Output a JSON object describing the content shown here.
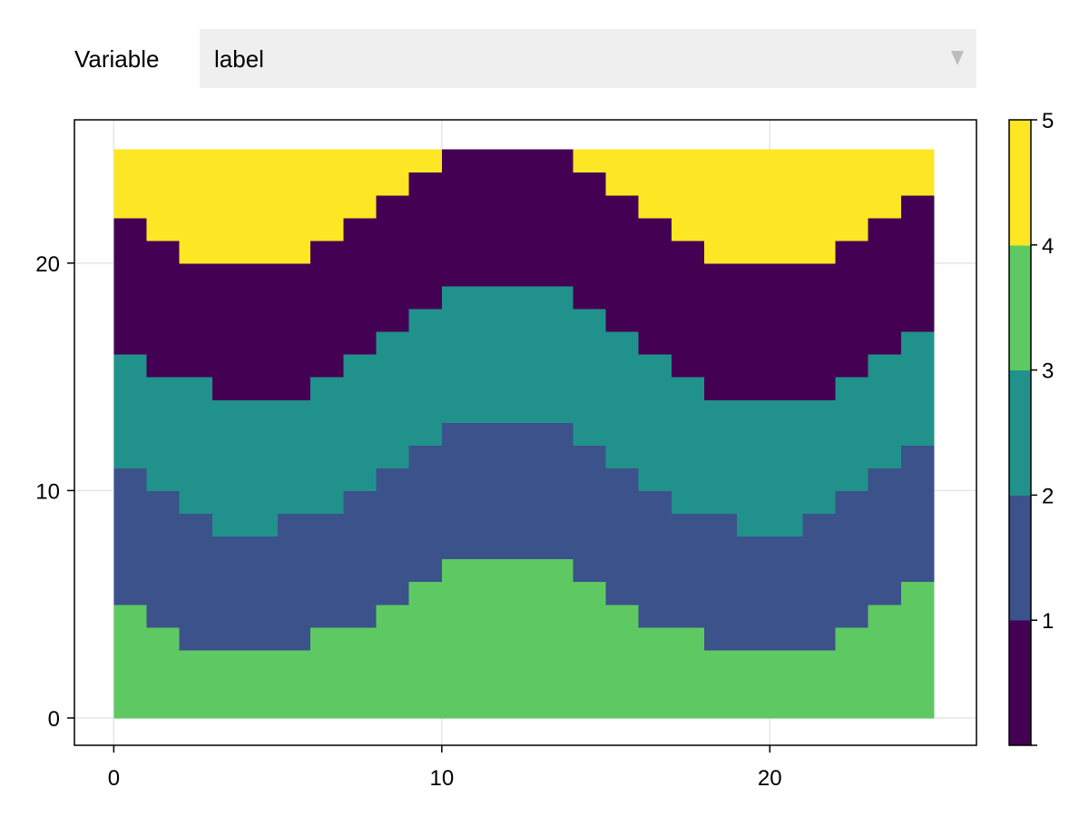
{
  "controls": {
    "variable_label": "Variable",
    "variable_value": "label"
  },
  "chart_data": {
    "type": "heatmap",
    "x_ticks": [
      "0",
      "10",
      "20"
    ],
    "y_ticks": [
      "0",
      "10",
      "20"
    ],
    "xlim": [
      -1.2,
      26.3
    ],
    "ylim": [
      -1.2,
      26.3
    ],
    "grid": true,
    "nx": 25,
    "ny": 25,
    "boundaries": {
      "green_top": [
        5,
        4,
        3,
        3,
        3,
        3,
        4,
        4,
        5,
        6,
        7,
        7,
        7,
        7,
        6,
        5,
        4,
        4,
        3,
        3,
        3,
        3,
        4,
        5,
        6
      ],
      "blue_top": [
        11,
        10,
        9,
        8,
        8,
        9,
        9,
        10,
        11,
        12,
        13,
        13,
        13,
        13,
        12,
        11,
        10,
        9,
        9,
        8,
        8,
        9,
        10,
        11,
        12
      ],
      "teal_top": [
        16,
        15,
        15,
        14,
        14,
        14,
        15,
        16,
        17,
        18,
        19,
        19,
        19,
        19,
        18,
        17,
        16,
        15,
        14,
        14,
        14,
        14,
        15,
        16,
        17
      ],
      "purple_top": [
        22,
        21,
        20,
        20,
        20,
        20,
        21,
        22,
        23,
        24,
        25,
        25,
        25,
        25,
        24,
        23,
        22,
        21,
        20,
        20,
        20,
        20,
        21,
        22,
        23
      ]
    },
    "band_classes": {
      "green": 4,
      "blue": 2,
      "teal": 3,
      "purple": 1,
      "yellow": 5
    },
    "colorbar": {
      "ticks": [
        "1",
        "2",
        "3",
        "4",
        "5"
      ],
      "classes": [
        1,
        2,
        3,
        4,
        5
      ],
      "colors": [
        "#440154",
        "#3b528b",
        "#21918c",
        "#5ec962",
        "#fde725"
      ]
    }
  }
}
